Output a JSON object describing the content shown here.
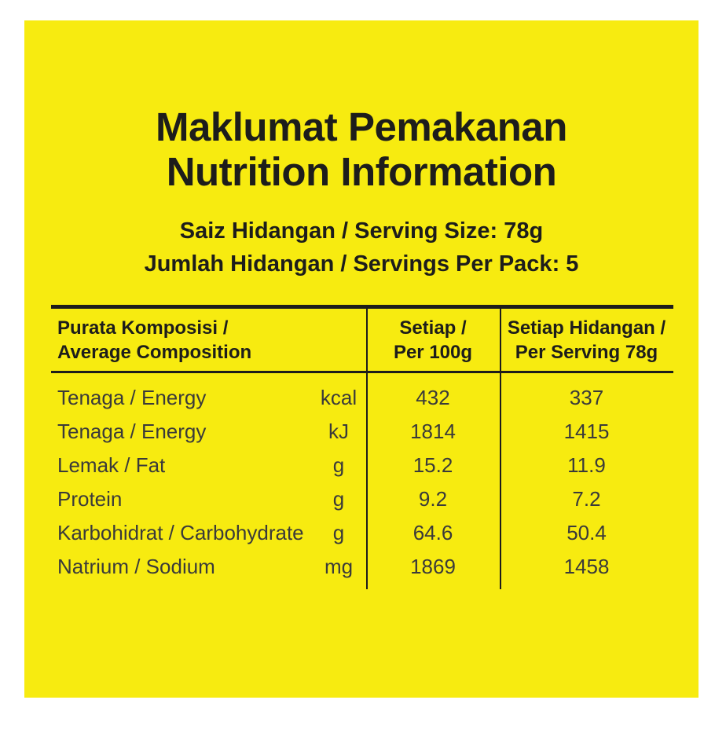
{
  "title": {
    "line1": "Maklumat Pemakanan",
    "line2": "Nutrition Information"
  },
  "serving": {
    "line1": "Saiz Hidangan / Serving Size: 78g",
    "line2": "Jumlah Hidangan / Servings Per Pack: 5"
  },
  "table": {
    "header": {
      "composition_line1": "Purata Komposisi /",
      "composition_line2": "Average Composition",
      "per100_line1": "Setiap /",
      "per100_line2": "Per 100g",
      "per_serving_line1": "Setiap Hidangan /",
      "per_serving_line2": "Per Serving 78g"
    },
    "rows": [
      {
        "label": "Tenaga / Energy",
        "unit": "kcal",
        "per100": "432",
        "per_serving": "337"
      },
      {
        "label": "Tenaga / Energy",
        "unit": "kJ",
        "per100": "1814",
        "per_serving": "1415"
      },
      {
        "label": "Lemak / Fat",
        "unit": "g",
        "per100": "15.2",
        "per_serving": "11.9"
      },
      {
        "label": "Protein",
        "unit": "g",
        "per100": "9.2",
        "per_serving": "7.2"
      },
      {
        "label": "Karbohidrat / Carbohydrate",
        "unit": "g",
        "per100": "64.6",
        "per_serving": "50.4"
      },
      {
        "label": "Natrium / Sodium",
        "unit": "mg",
        "per100": "1869",
        "per_serving": "1458"
      }
    ]
  },
  "colors": {
    "label_yellow": "#F7EB10",
    "text_dark": "#1D1D1B",
    "text_body": "#3A3A3A",
    "page_background": "#FFFFFF"
  }
}
